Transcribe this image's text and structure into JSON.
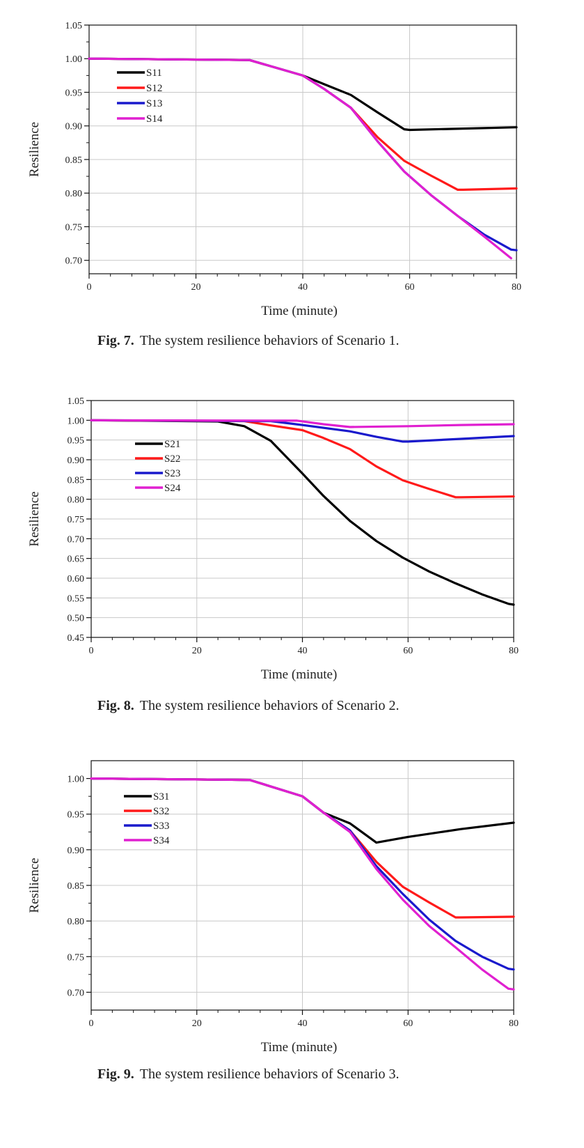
{
  "chart_data": [
    {
      "type": "line",
      "xlabel": "Time (minute)",
      "ylabel": "Resilience",
      "xlim": [
        0,
        80
      ],
      "ylim": [
        0.68,
        1.05
      ],
      "xticks": [
        0,
        20,
        40,
        60,
        80
      ],
      "yticks": [
        0.7,
        0.75,
        0.8,
        0.85,
        0.9,
        0.95,
        1.0,
        1.05
      ],
      "grid": true,
      "legend_position": "top-left",
      "caption_label": "Fig. 7.",
      "caption_text": "The system resilience behaviors of Scenario 1.",
      "series": [
        {
          "name": "S11",
          "color": "#000000",
          "x": [
            0,
            30,
            40,
            44,
            49,
            54,
            59,
            60,
            70,
            80
          ],
          "y": [
            1.0,
            0.998,
            0.975,
            0.962,
            0.946,
            0.92,
            0.895,
            0.894,
            0.896,
            0.898
          ]
        },
        {
          "name": "S12",
          "color": "#ff1a1a",
          "x": [
            0,
            30,
            40,
            44,
            49,
            54,
            59,
            64,
            69,
            70,
            80
          ],
          "y": [
            1.0,
            0.998,
            0.975,
            0.955,
            0.927,
            0.883,
            0.848,
            0.826,
            0.805,
            0.805,
            0.807
          ]
        },
        {
          "name": "S13",
          "color": "#1a1acc",
          "x": [
            0,
            30,
            40,
            44,
            49,
            54,
            59,
            64,
            69,
            74,
            79,
            80
          ],
          "y": [
            1.0,
            0.998,
            0.975,
            0.955,
            0.927,
            0.877,
            0.832,
            0.797,
            0.766,
            0.738,
            0.716,
            0.715
          ]
        },
        {
          "name": "S14",
          "color": "#e020d0",
          "x": [
            0,
            30,
            40,
            44,
            49,
            54,
            59,
            64,
            69,
            74,
            79
          ],
          "y": [
            1.0,
            0.998,
            0.975,
            0.955,
            0.927,
            0.877,
            0.832,
            0.797,
            0.766,
            0.735,
            0.703
          ]
        }
      ]
    },
    {
      "type": "line",
      "xlabel": "Time (minute)",
      "ylabel": "Resilience",
      "xlim": [
        0,
        80
      ],
      "ylim": [
        0.45,
        1.05
      ],
      "xticks": [
        0,
        20,
        40,
        60,
        80
      ],
      "yticks": [
        0.45,
        0.5,
        0.55,
        0.6,
        0.65,
        0.7,
        0.75,
        0.8,
        0.85,
        0.9,
        0.95,
        1.0,
        1.05
      ],
      "grid": true,
      "legend_position": "top-left",
      "caption_label": "Fig. 8.",
      "caption_text": "The system resilience behaviors of Scenario 2.",
      "series": [
        {
          "name": "S21",
          "color": "#000000",
          "x": [
            0,
            24,
            29,
            34,
            40,
            44,
            49,
            54,
            59,
            64,
            69,
            74,
            79,
            80
          ],
          "y": [
            1.0,
            0.997,
            0.985,
            0.948,
            0.865,
            0.808,
            0.745,
            0.694,
            0.652,
            0.617,
            0.587,
            0.559,
            0.535,
            0.533
          ]
        },
        {
          "name": "S22",
          "color": "#ff1a1a",
          "x": [
            0,
            29,
            34,
            40,
            44,
            49,
            54,
            59,
            64,
            69,
            70,
            80
          ],
          "y": [
            1.0,
            0.998,
            0.987,
            0.975,
            0.955,
            0.927,
            0.883,
            0.848,
            0.826,
            0.805,
            0.805,
            0.807
          ]
        },
        {
          "name": "S23",
          "color": "#1a1acc",
          "x": [
            0,
            34,
            40,
            49,
            54,
            59,
            60,
            70,
            80
          ],
          "y": [
            1.0,
            0.998,
            0.988,
            0.972,
            0.958,
            0.946,
            0.946,
            0.953,
            0.96
          ]
        },
        {
          "name": "S24",
          "color": "#e020d0",
          "x": [
            0,
            39,
            44,
            49,
            60,
            70,
            80
          ],
          "y": [
            1.0,
            0.999,
            0.99,
            0.983,
            0.985,
            0.988,
            0.99
          ]
        }
      ]
    },
    {
      "type": "line",
      "xlabel": "Time (minute)",
      "ylabel": "Resilience",
      "xlim": [
        0,
        80
      ],
      "ylim": [
        0.675,
        1.025
      ],
      "xticks": [
        0,
        20,
        40,
        60,
        80
      ],
      "yticks": [
        0.7,
        0.75,
        0.8,
        0.85,
        0.9,
        0.95,
        1.0
      ],
      "grid": true,
      "legend_position": "top-left",
      "caption_label": "Fig. 9.",
      "caption_text": "The system resilience behaviors of Scenario 3.",
      "series": [
        {
          "name": "S31",
          "color": "#000000",
          "x": [
            0,
            30,
            40,
            44,
            49,
            54,
            60,
            70,
            80
          ],
          "y": [
            1.0,
            0.998,
            0.975,
            0.952,
            0.937,
            0.91,
            0.918,
            0.929,
            0.938
          ]
        },
        {
          "name": "S32",
          "color": "#ff1a1a",
          "x": [
            0,
            30,
            40,
            44,
            49,
            54,
            59,
            64,
            69,
            70,
            80
          ],
          "y": [
            1.0,
            0.998,
            0.975,
            0.952,
            0.927,
            0.883,
            0.848,
            0.826,
            0.805,
            0.805,
            0.806
          ]
        },
        {
          "name": "S33",
          "color": "#1a1acc",
          "x": [
            0,
            30,
            40,
            44,
            49,
            54,
            59,
            64,
            69,
            74,
            79,
            80
          ],
          "y": [
            1.0,
            0.998,
            0.975,
            0.952,
            0.927,
            0.877,
            0.838,
            0.802,
            0.772,
            0.75,
            0.733,
            0.732
          ]
        },
        {
          "name": "S34",
          "color": "#e020d0",
          "x": [
            0,
            30,
            40,
            44,
            49,
            54,
            59,
            64,
            69,
            74,
            79,
            80
          ],
          "y": [
            1.0,
            0.998,
            0.975,
            0.952,
            0.925,
            0.873,
            0.83,
            0.793,
            0.763,
            0.732,
            0.705,
            0.704
          ]
        }
      ]
    }
  ]
}
